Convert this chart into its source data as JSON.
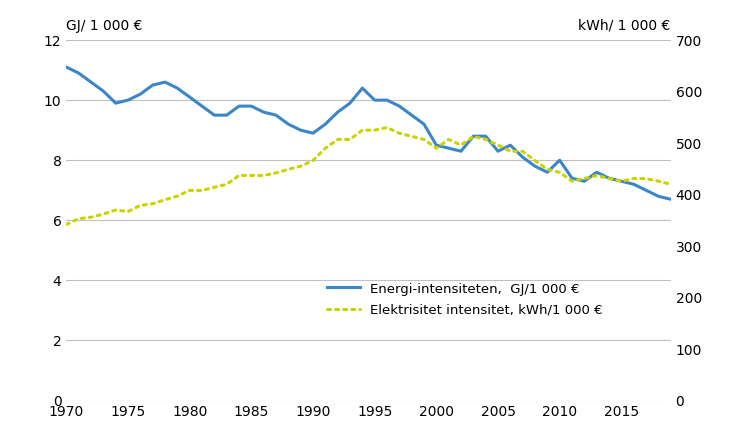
{
  "years": [
    1970,
    1971,
    1972,
    1973,
    1974,
    1975,
    1976,
    1977,
    1978,
    1979,
    1980,
    1981,
    1982,
    1983,
    1984,
    1985,
    1986,
    1987,
    1988,
    1989,
    1990,
    1991,
    1992,
    1993,
    1994,
    1995,
    1996,
    1997,
    1998,
    1999,
    2000,
    2001,
    2002,
    2003,
    2004,
    2005,
    2006,
    2007,
    2008,
    2009,
    2010,
    2011,
    2012,
    2013,
    2014,
    2015,
    2016,
    2017,
    2018,
    2019
  ],
  "energy_intensity": [
    11.1,
    10.9,
    10.6,
    10.3,
    9.9,
    10.0,
    10.2,
    10.5,
    10.6,
    10.4,
    10.1,
    9.8,
    9.5,
    9.5,
    9.8,
    9.8,
    9.6,
    9.5,
    9.2,
    9.0,
    8.9,
    9.2,
    9.6,
    9.9,
    10.4,
    10.0,
    10.0,
    9.8,
    9.5,
    9.2,
    8.5,
    8.4,
    8.3,
    8.8,
    8.8,
    8.3,
    8.5,
    8.1,
    7.8,
    7.6,
    8.0,
    7.4,
    7.3,
    7.6,
    7.4,
    7.3,
    7.2,
    7.0,
    6.8,
    6.7
  ],
  "elec_intensity_kwh": [
    342,
    353,
    356,
    362,
    370,
    367,
    379,
    382,
    390,
    397,
    408,
    408,
    414,
    420,
    437,
    437,
    437,
    442,
    449,
    455,
    466,
    490,
    507,
    507,
    525,
    525,
    530,
    519,
    513,
    507,
    490,
    507,
    496,
    513,
    507,
    496,
    484,
    484,
    466,
    449,
    443,
    426,
    431,
    437,
    431,
    426,
    431,
    431,
    426,
    420
  ],
  "energy_color": "#3a86c8",
  "elec_color": "#c8d400",
  "ylabel_left": "GJ/ 1 000 €",
  "ylabel_right": "kWh/ 1 000 €",
  "ylim_left": [
    0,
    12
  ],
  "ylim_right": [
    0,
    700
  ],
  "yticks_left": [
    0,
    2,
    4,
    6,
    8,
    10,
    12
  ],
  "yticks_right": [
    0,
    100,
    200,
    300,
    400,
    500,
    600,
    700
  ],
  "xticks": [
    1970,
    1975,
    1980,
    1985,
    1990,
    1995,
    2000,
    2005,
    2010,
    2015
  ],
  "legend_energy": "Energi-intensiteten,  GJ/1 000 €",
  "legend_elec": "Elektrisitet intensitet, kWh/1 000 €",
  "background_color": "#ffffff",
  "grid_color": "#c0c0c0",
  "linewidth_energy": 2.2,
  "linewidth_elec": 2.2
}
